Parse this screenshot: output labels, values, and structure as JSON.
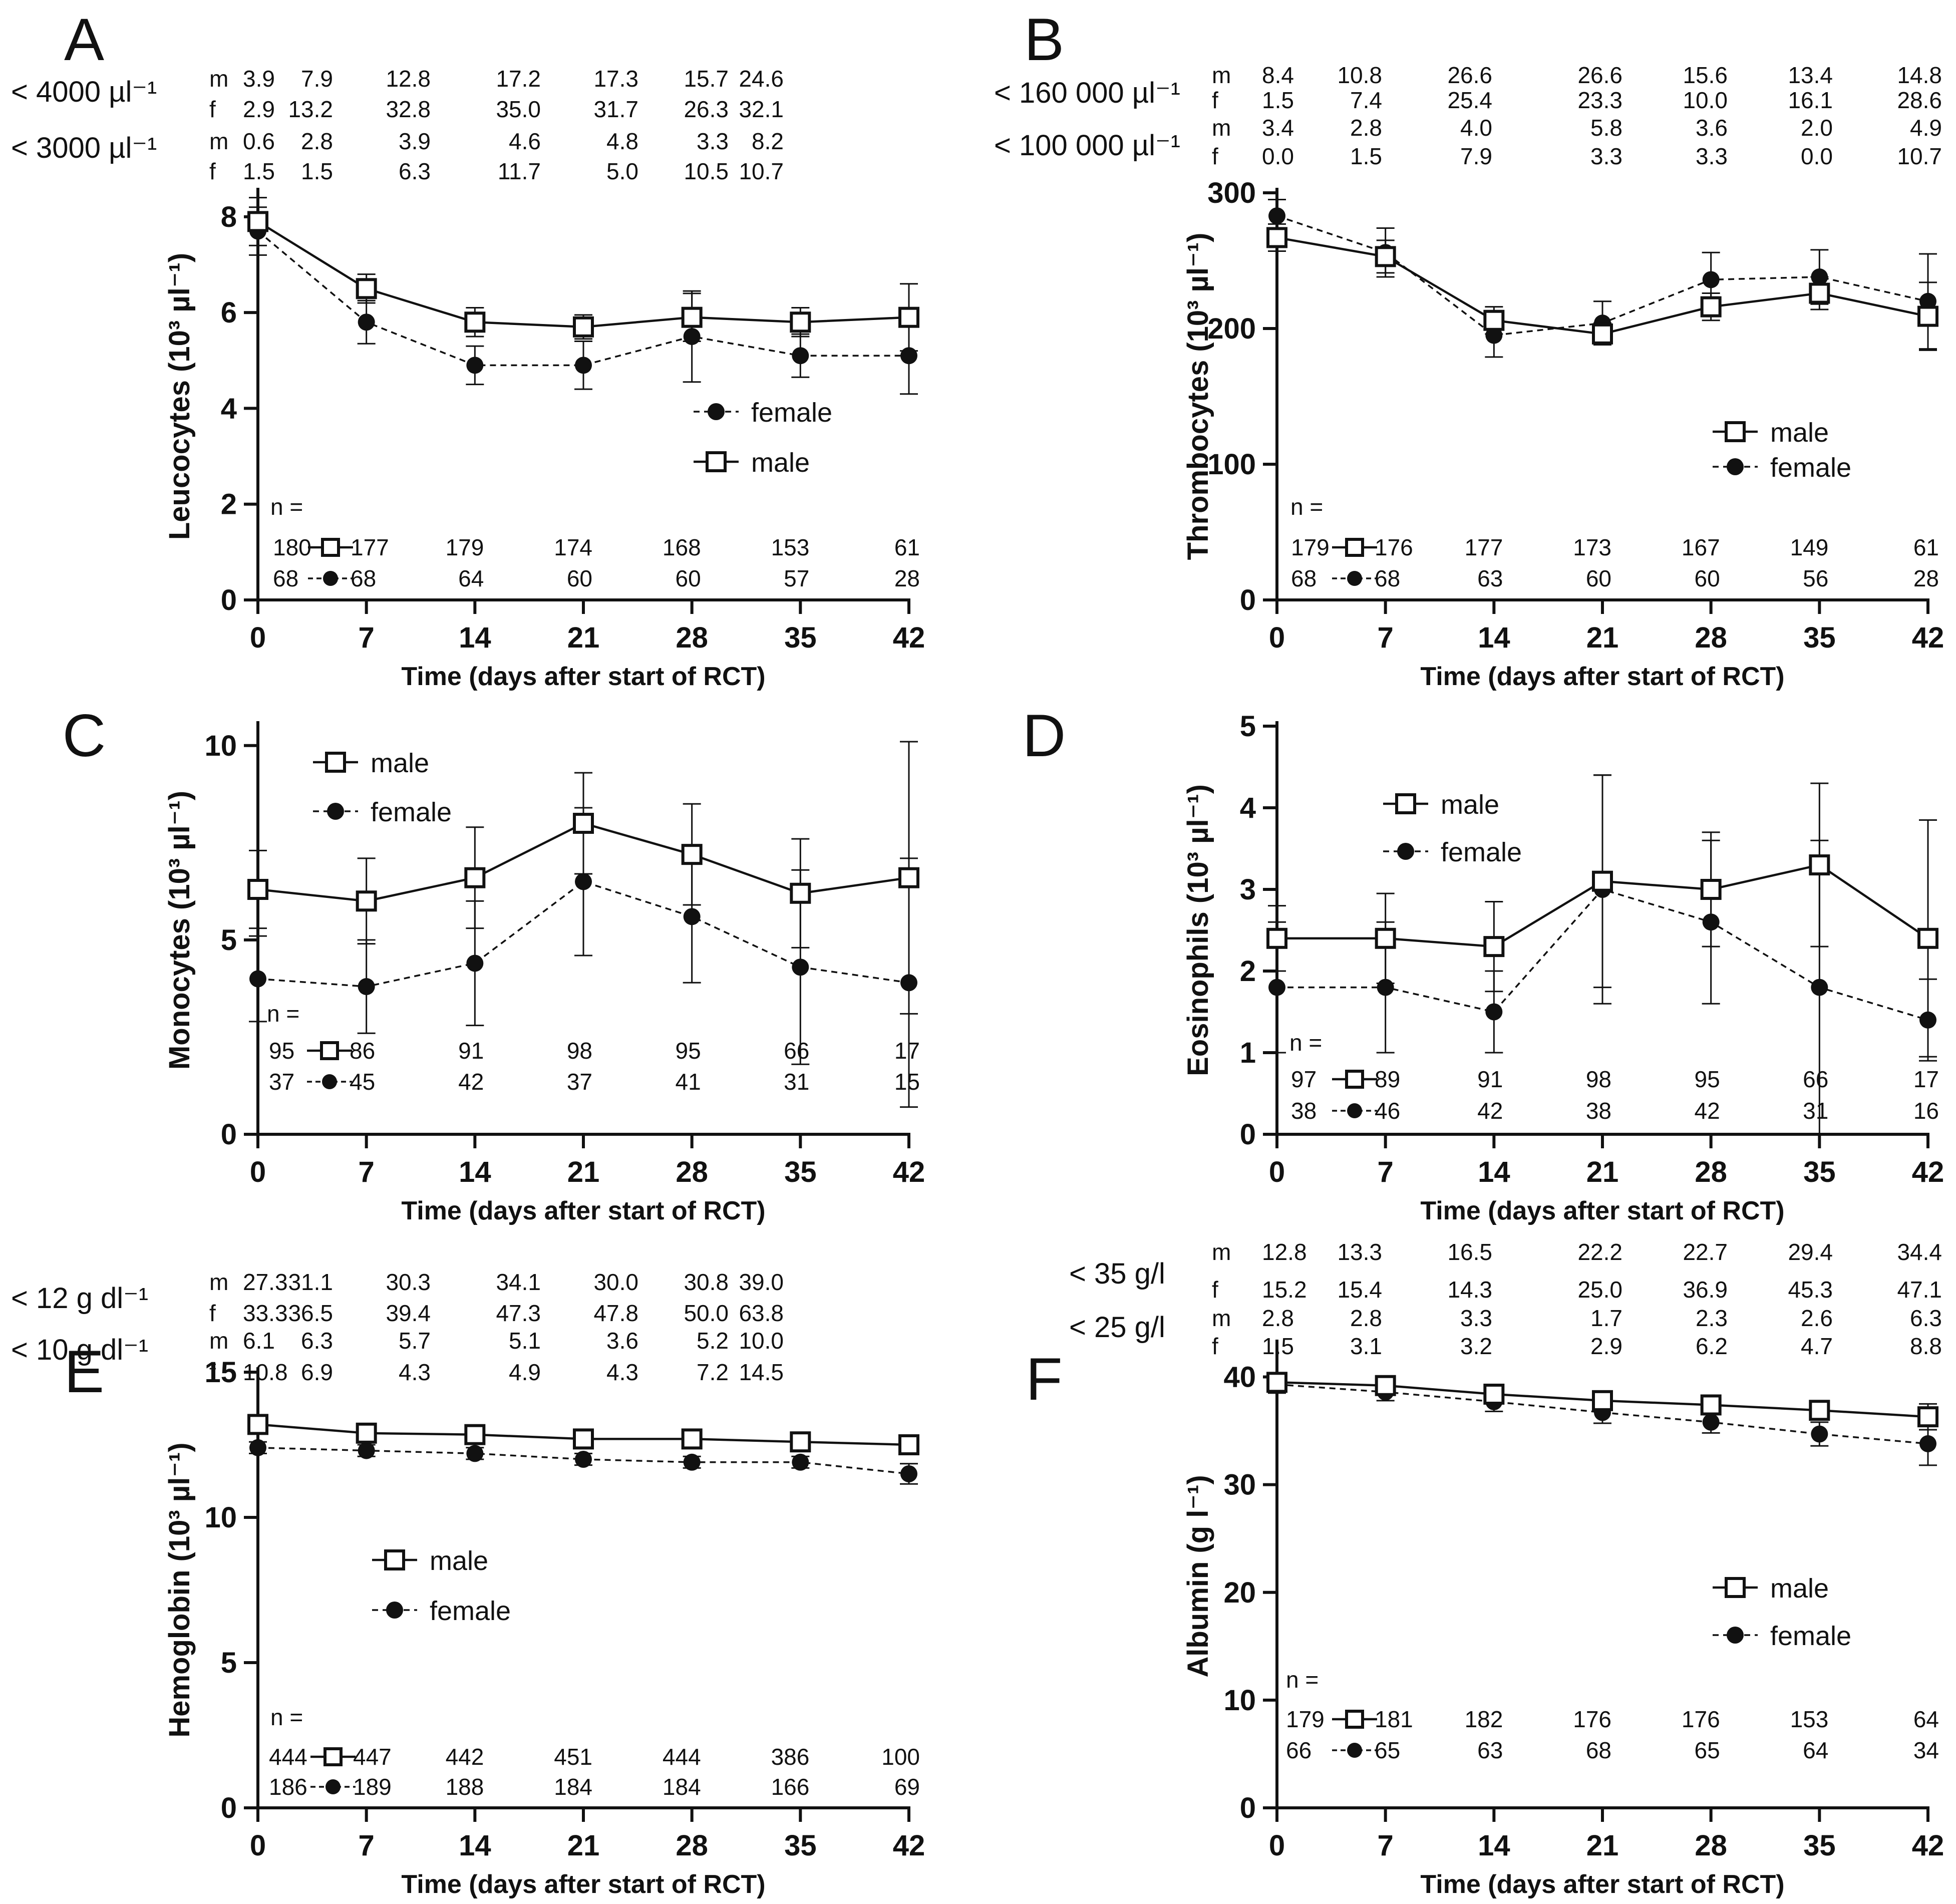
{
  "colors": {
    "ink": "#111111",
    "background": "#ffffff"
  },
  "chart_data": [
    {
      "type": "line",
      "panel": "A",
      "title": "",
      "xlabel": "Time (days after start of RCT)",
      "ylabel": "Leucocytes (10³ µl⁻¹)",
      "ylim": [
        0,
        8.5
      ],
      "yticks": [
        0,
        2,
        4,
        6,
        8
      ],
      "x": [
        0,
        7,
        14,
        21,
        28,
        35,
        42
      ],
      "series": [
        {
          "name": "male",
          "marker": "open-square",
          "line": "solid",
          "values": [
            7.9,
            6.5,
            5.8,
            5.7,
            5.9,
            5.8,
            5.9
          ],
          "error": [
            0.5,
            0.3,
            0.3,
            0.25,
            0.5,
            0.3,
            0.7
          ]
        },
        {
          "name": "female",
          "marker": "filled-circle",
          "line": "dashed",
          "values": [
            7.7,
            5.8,
            4.9,
            4.9,
            5.5,
            5.1,
            5.1
          ],
          "error": [
            0.5,
            0.45,
            0.4,
            0.5,
            0.95,
            0.45,
            0.8
          ]
        }
      ],
      "legend": {
        "position": "right-middle",
        "order": [
          "female",
          "male"
        ]
      },
      "n_label": "n =",
      "n_rows": [
        {
          "series": "male",
          "values": [
            "180",
            "177",
            "179",
            "174",
            "168",
            "153",
            "61"
          ]
        },
        {
          "series": "female",
          "values": [
            "68",
            "68",
            "64",
            "60",
            "60",
            "57",
            "28"
          ]
        }
      ],
      "threshold_table": [
        {
          "label": "< 4000 µl⁻¹",
          "rows": [
            {
              "sex": "m",
              "values": [
                "3.9",
                "7.9",
                "12.8",
                "17.2",
                "17.3",
                "15.7",
                "24.6"
              ]
            },
            {
              "sex": "f",
              "values": [
                "2.9",
                "13.2",
                "32.8",
                "35.0",
                "31.7",
                "26.3",
                "32.1"
              ]
            }
          ]
        },
        {
          "label": "< 3000 µl⁻¹",
          "rows": [
            {
              "sex": "m",
              "values": [
                "0.6",
                "2.8",
                "3.9",
                "4.6",
                "4.8",
                "3.3",
                "8.2"
              ]
            },
            {
              "sex": "f",
              "values": [
                "1.5",
                "1.5",
                "6.3",
                "11.7",
                "5.0",
                "10.5",
                "10.7"
              ]
            }
          ]
        }
      ]
    },
    {
      "type": "line",
      "panel": "B",
      "title": "",
      "xlabel": "Time (days after start of RCT)",
      "ylabel": "Thrombocytes (10³ µl⁻¹)",
      "ylim": [
        0,
        300
      ],
      "yticks": [
        0,
        100,
        200,
        300
      ],
      "x": [
        0,
        7,
        14,
        21,
        28,
        35,
        42
      ],
      "series": [
        {
          "name": "male",
          "marker": "open-square",
          "line": "solid",
          "values": [
            267,
            253,
            206,
            196,
            216,
            226,
            209
          ],
          "error": [
            10,
            12,
            10,
            8,
            10,
            12,
            25
          ]
        },
        {
          "name": "female",
          "marker": "filled-circle",
          "line": "dashed",
          "values": [
            283,
            256,
            195,
            204,
            236,
            238,
            220
          ],
          "error": [
            12,
            18,
            16,
            16,
            20,
            20,
            35
          ]
        }
      ],
      "legend": {
        "position": "right-middle",
        "order": [
          "male",
          "female"
        ]
      },
      "n_label": "n =",
      "n_rows": [
        {
          "series": "male",
          "values": [
            "179",
            "176",
            "177",
            "173",
            "167",
            "149",
            "61"
          ]
        },
        {
          "series": "female",
          "values": [
            "68",
            "68",
            "63",
            "60",
            "60",
            "56",
            "28"
          ]
        }
      ],
      "threshold_table": [
        {
          "label": "< 160 000 µl⁻¹",
          "rows": [
            {
              "sex": "m",
              "values": [
                "8.4",
                "10.8",
                "26.6",
                "26.6",
                "15.6",
                "13.4",
                "14.8"
              ]
            },
            {
              "sex": "f",
              "values": [
                "1.5",
                "7.4",
                "25.4",
                "23.3",
                "10.0",
                "16.1",
                "28.6"
              ]
            }
          ]
        },
        {
          "label": "< 100 000 µl⁻¹",
          "rows": [
            {
              "sex": "m",
              "values": [
                "3.4",
                "2.8",
                "4.0",
                "5.8",
                "3.6",
                "2.0",
                "4.9"
              ]
            },
            {
              "sex": "f",
              "values": [
                "0.0",
                "1.5",
                "7.9",
                "3.3",
                "3.3",
                "0.0",
                "10.7"
              ]
            }
          ]
        }
      ]
    },
    {
      "type": "line",
      "panel": "C",
      "title": "",
      "xlabel": "Time (days after start of RCT)",
      "ylabel": "Monocytes (10³ µl⁻¹)",
      "ylim": [
        0,
        10.5
      ],
      "yticks": [
        0,
        5,
        10
      ],
      "x": [
        0,
        7,
        14,
        21,
        28,
        35,
        42
      ],
      "series": [
        {
          "name": "male",
          "marker": "open-square",
          "line": "solid",
          "values": [
            6.3,
            6.0,
            6.6,
            8.0,
            7.2,
            6.2,
            6.6
          ],
          "error": [
            1.0,
            1.1,
            1.3,
            1.3,
            1.3,
            1.4,
            3.5
          ]
        },
        {
          "name": "female",
          "marker": "filled-circle",
          "line": "dashed",
          "values": [
            4.0,
            3.8,
            4.4,
            6.5,
            5.6,
            4.3,
            3.9
          ],
          "error": [
            1.1,
            1.2,
            1.6,
            1.9,
            1.7,
            2.5,
            3.2
          ]
        }
      ],
      "legend": {
        "position": "top-left",
        "order": [
          "male",
          "female"
        ]
      },
      "n_label": "n =",
      "n_rows": [
        {
          "series": "male",
          "values": [
            "95",
            "86",
            "91",
            "98",
            "95",
            "66",
            "17"
          ]
        },
        {
          "series": "female",
          "values": [
            "37",
            "45",
            "42",
            "37",
            "41",
            "31",
            "15"
          ]
        }
      ]
    },
    {
      "type": "line",
      "panel": "D",
      "title": "",
      "xlabel": "Time (days after start of RCT)",
      "ylabel": "Eosinophils (10³ µl⁻¹)",
      "ylim": [
        0,
        5
      ],
      "yticks": [
        0,
        1,
        2,
        3,
        4,
        5
      ],
      "x": [
        0,
        7,
        14,
        21,
        28,
        35,
        42
      ],
      "series": [
        {
          "name": "male",
          "marker": "open-square",
          "line": "solid",
          "values": [
            2.4,
            2.4,
            2.3,
            3.1,
            3.0,
            3.3,
            2.4
          ],
          "error": [
            0.4,
            0.55,
            0.55,
            1.3,
            0.7,
            1.0,
            1.45
          ]
        },
        {
          "name": "female",
          "marker": "filled-circle",
          "line": "dashed",
          "values": [
            1.8,
            1.8,
            1.5,
            3.0,
            2.6,
            1.8,
            1.4
          ],
          "error": [
            0.8,
            0.8,
            0.5,
            1.4,
            1.0,
            1.8,
            0.5
          ]
        }
      ],
      "legend": {
        "position": "top-left",
        "order": [
          "male",
          "female"
        ]
      },
      "n_label": "n =",
      "n_rows": [
        {
          "series": "male",
          "values": [
            "97",
            "89",
            "91",
            "98",
            "95",
            "66",
            "17"
          ]
        },
        {
          "series": "female",
          "values": [
            "38",
            "46",
            "42",
            "38",
            "42",
            "31",
            "16"
          ]
        }
      ]
    },
    {
      "type": "line",
      "panel": "E",
      "title": "",
      "xlabel": "Time (days after start of RCT)",
      "ylabel": "Hemoglobin (10³ µl⁻¹)",
      "ylim": [
        0,
        15
      ],
      "yticks": [
        0,
        5,
        10,
        15
      ],
      "x": [
        0,
        7,
        14,
        21,
        28,
        35,
        42
      ],
      "series": [
        {
          "name": "male",
          "marker": "open-square",
          "line": "solid",
          "values": [
            13.2,
            12.9,
            12.85,
            12.7,
            12.7,
            12.6,
            12.5
          ],
          "error": [
            0.15,
            0.15,
            0.15,
            0.15,
            0.15,
            0.2,
            0.25
          ]
        },
        {
          "name": "female",
          "marker": "filled-circle",
          "line": "dashed",
          "values": [
            12.4,
            12.3,
            12.2,
            12.0,
            11.9,
            11.9,
            11.5
          ],
          "error": [
            0.2,
            0.2,
            0.2,
            0.2,
            0.2,
            0.2,
            0.35
          ]
        }
      ],
      "legend": {
        "position": "left-middle",
        "order": [
          "male",
          "female"
        ]
      },
      "n_label": "n =",
      "n_rows": [
        {
          "series": "male",
          "values": [
            "444",
            "447",
            "442",
            "451",
            "444",
            "386",
            "100"
          ]
        },
        {
          "series": "female",
          "values": [
            "186",
            "189",
            "188",
            "184",
            "184",
            "166",
            "69"
          ]
        }
      ],
      "threshold_table": [
        {
          "label": "< 12 g dl⁻¹",
          "rows": [
            {
              "sex": "m",
              "values": [
                "27.3",
                "31.1",
                "30.3",
                "34.1",
                "30.0",
                "30.8",
                "39.0"
              ]
            },
            {
              "sex": "f",
              "values": [
                "33.3",
                "36.5",
                "39.4",
                "47.3",
                "47.8",
                "50.0",
                "63.8"
              ]
            }
          ]
        },
        {
          "label": "< 10 g dl⁻¹",
          "rows": [
            {
              "sex": "m",
              "values": [
                "6.1",
                "6.3",
                "5.7",
                "5.1",
                "3.6",
                "5.2",
                "10.0"
              ]
            },
            {
              "sex": "f",
              "values": [
                "10.8",
                "6.9",
                "4.3",
                "4.9",
                "4.3",
                "7.2",
                "14.5"
              ]
            }
          ]
        }
      ]
    },
    {
      "type": "line",
      "panel": "F",
      "title": "",
      "xlabel": "Time (days after start of RCT)",
      "ylabel": "Albumin (g l⁻¹)",
      "ylim": [
        0,
        43
      ],
      "yticks": [
        0,
        10,
        20,
        30,
        40
      ],
      "x": [
        0,
        7,
        14,
        21,
        28,
        35,
        42
      ],
      "series": [
        {
          "name": "male",
          "marker": "open-square",
          "line": "solid",
          "values": [
            39.5,
            39.2,
            38.4,
            37.8,
            37.4,
            36.9,
            36.3
          ],
          "error": [
            0.5,
            0.5,
            0.6,
            0.6,
            0.6,
            0.7,
            1.2
          ]
        },
        {
          "name": "female",
          "marker": "filled-circle",
          "line": "dashed",
          "values": [
            39.3,
            38.6,
            37.7,
            36.7,
            35.8,
            34.7,
            33.8
          ],
          "error": [
            0.8,
            0.8,
            0.9,
            1.0,
            1.0,
            1.1,
            2.0
          ]
        }
      ],
      "legend": {
        "position": "right-middle",
        "order": [
          "male",
          "female"
        ]
      },
      "n_label": "n =",
      "n_rows": [
        {
          "series": "male",
          "values": [
            "179",
            "181",
            "182",
            "176",
            "176",
            "153",
            "64"
          ]
        },
        {
          "series": "female",
          "values": [
            "66",
            "65",
            "63",
            "68",
            "65",
            "64",
            "34"
          ]
        }
      ],
      "threshold_table": [
        {
          "label": "< 35 g/l",
          "rows": [
            {
              "sex": "m",
              "values": [
                "12.8",
                "13.3",
                "16.5",
                "22.2",
                "22.7",
                "29.4",
                "34.4"
              ]
            },
            {
              "sex": "f",
              "values": [
                "15.2",
                "15.4",
                "14.3",
                "25.0",
                "36.9",
                "45.3",
                "47.1"
              ]
            }
          ]
        },
        {
          "label": "< 25 g/l",
          "rows": [
            {
              "sex": "m",
              "values": [
                "2.8",
                "2.8",
                "3.3",
                "1.7",
                "2.3",
                "2.6",
                "6.3"
              ]
            },
            {
              "sex": "f",
              "values": [
                "1.5",
                "3.1",
                "3.2",
                "2.9",
                "6.2",
                "4.7",
                "8.8"
              ]
            }
          ]
        }
      ]
    }
  ]
}
